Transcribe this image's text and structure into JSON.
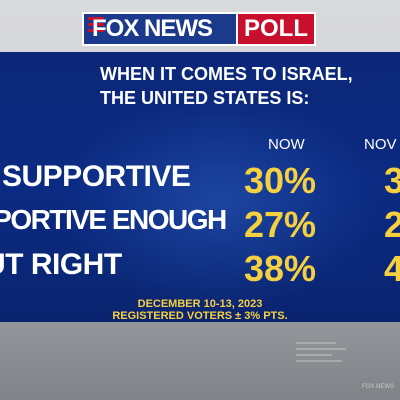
{
  "logo": {
    "brand": "FOX NEWS",
    "suffix": "POLL"
  },
  "question": {
    "line1": "WHEN IT COMES TO ISRAEL,",
    "line2": "THE UNITED STATES IS:"
  },
  "columns": {
    "now": "NOW",
    "previous_partial": "NOV"
  },
  "rows": [
    {
      "label_visible": "SUPPORTIVE",
      "now": "30%",
      "previous_partial": "3"
    },
    {
      "label_visible": "PPORTIVE ENOUGH",
      "now": "27%",
      "previous_partial": "2"
    },
    {
      "label_visible": "UT RIGHT",
      "now": "38%",
      "previous_partial": "4"
    }
  ],
  "footnote": {
    "line1": "DECEMBER 10-13, 2023",
    "line2": "REGISTERED VOTERS ± 3% PTS."
  },
  "colors": {
    "panel_blue": "#0b2a82",
    "value_gold": "#f6d03f",
    "logo_red": "#c8102e",
    "logo_blue": "#1b3a8c"
  },
  "background": {
    "watermark": "FOX NEWS"
  }
}
